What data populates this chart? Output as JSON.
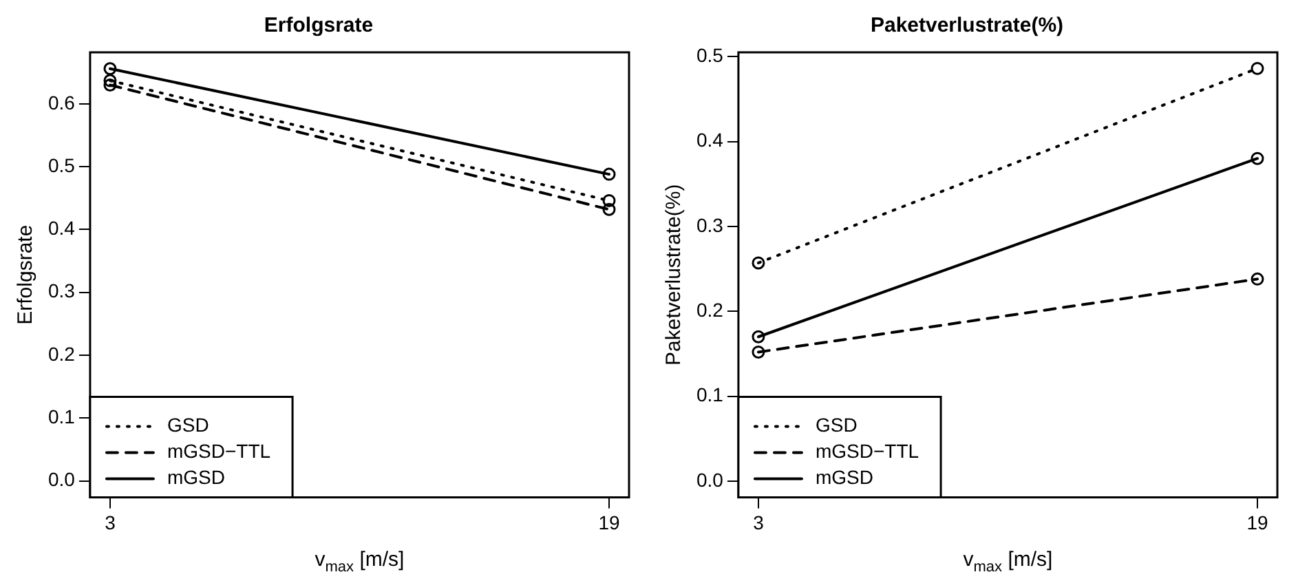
{
  "chart_data": [
    {
      "type": "line",
      "title": "Erfolgsrate",
      "xlabel": "v$_{max}$  [m/s]",
      "ylabel": "Erfolgsrate",
      "categories": [
        "3",
        "19"
      ],
      "ylim": [
        -0.026,
        0.682
      ],
      "yticks": [
        {
          "value": 0,
          "label": "0.0"
        },
        0.1,
        0.2,
        0.3,
        0.4,
        0.5,
        0.6
      ],
      "grid": false,
      "legend": "bottom left",
      "marker": "circle",
      "series": [
        {
          "name": "GSD",
          "color": "#000000",
          "line_style": "dotted",
          "values": [
            0.637,
            0.446
          ]
        },
        {
          "name": "mGSD−TTL",
          "color": "#000000",
          "line_style": "dashed",
          "values": [
            0.63,
            0.432
          ]
        },
        {
          "name": "mGSD",
          "color": "#000000",
          "line_style": "solid",
          "values": [
            0.656,
            0.488
          ]
        }
      ]
    },
    {
      "type": "line",
      "title": "Paketverlustrate(%)",
      "xlabel": "v$_{max}$  [m/s]",
      "ylabel": "Paketverlustrate(%)",
      "categories": [
        "3",
        "19"
      ],
      "ylim": [
        -0.019,
        0.505
      ],
      "yticks": [
        {
          "value": 0,
          "label": "0.0"
        },
        0.1,
        0.2,
        0.3,
        0.4,
        0.5
      ],
      "grid": false,
      "legend": "bottom left",
      "marker": "circle",
      "series": [
        {
          "name": "GSD",
          "color": "#000000",
          "line_style": "dotted",
          "values": [
            0.257,
            0.486
          ]
        },
        {
          "name": "mGSD−TTL",
          "color": "#000000",
          "line_style": "dashed",
          "values": [
            0.152,
            0.238
          ]
        },
        {
          "name": "mGSD",
          "color": "#000000",
          "line_style": "solid",
          "values": [
            0.17,
            0.38
          ]
        }
      ]
    }
  ]
}
